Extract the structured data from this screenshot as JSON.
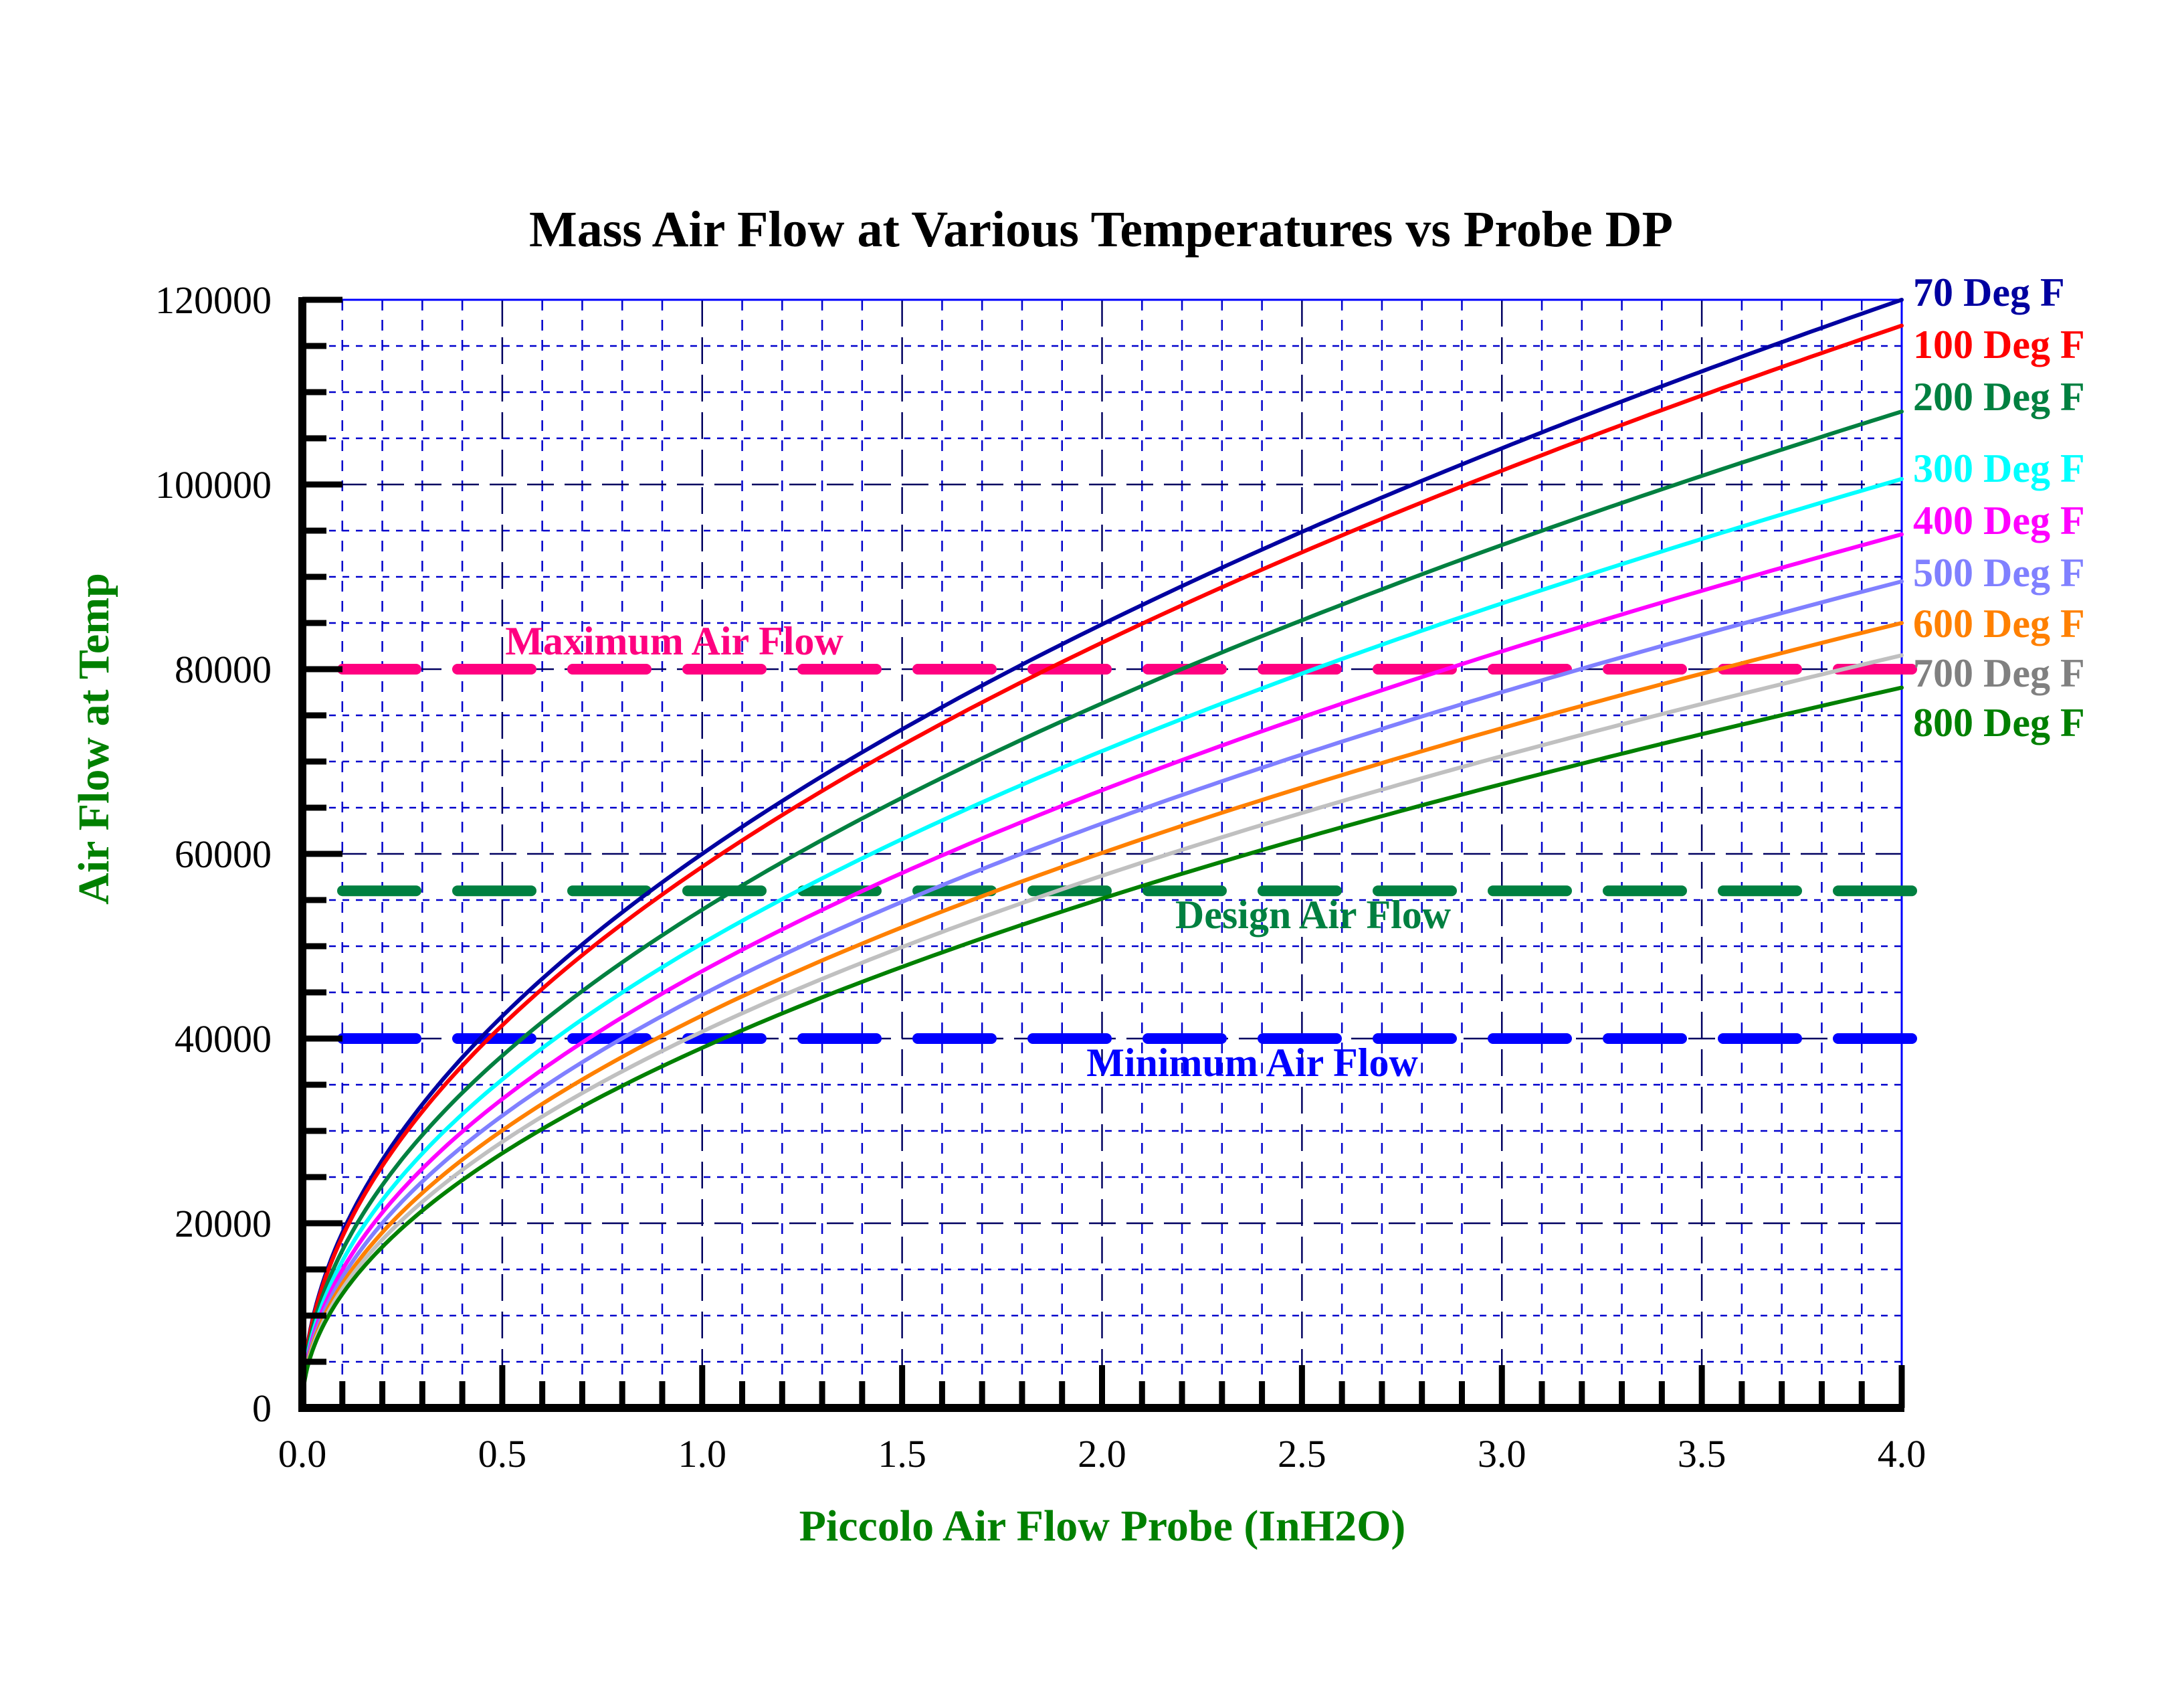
{
  "chart_data": {
    "type": "line",
    "title": "Mass Air Flow at Various Temperatures vs Probe DP",
    "xlabel": "Piccolo Air Flow Probe (InH2O)",
    "ylabel": "Air Flow at Temp",
    "xlim": [
      0,
      4.0
    ],
    "ylim": [
      0,
      120000
    ],
    "x_ticks": [
      "0.0",
      "0.5",
      "1.0",
      "1.5",
      "2.0",
      "2.5",
      "3.0",
      "3.5",
      "4.0"
    ],
    "y_ticks": [
      "0",
      "20000",
      "40000",
      "60000",
      "80000",
      "100000",
      "120000"
    ],
    "grid": true,
    "legend_placement": "right",
    "x": [
      0,
      0.1,
      0.25,
      0.5,
      1.0,
      1.5,
      2.0,
      2.5,
      3.0,
      3.5,
      4.0
    ],
    "series": [
      {
        "name": "70 Deg F",
        "color": "#0000a0",
        "values": [
          0,
          18974,
          30000,
          42426,
          60000,
          73485,
          84853,
          94868,
          103923,
          112250,
          120000
        ]
      },
      {
        "name": "100 Deg F",
        "color": "#ff0000",
        "values": [
          0,
          18531,
          29300,
          41437,
          58600,
          71770,
          82874,
          92654,
          101499,
          109631,
          117200
        ]
      },
      {
        "name": "200 Deg F",
        "color": "#008040",
        "values": [
          0,
          17059,
          26975,
          38148,
          53950,
          66074,
          76296,
          85300,
          93447,
          100930,
          107900
        ]
      },
      {
        "name": "300 Deg F",
        "color": "#00ffff",
        "values": [
          0,
          15905,
          25150,
          35567,
          50300,
          61604,
          71134,
          79529,
          87124,
          94101,
          100600
        ]
      },
      {
        "name": "400 Deg F",
        "color": "#ff00ff",
        "values": [
          0,
          14956,
          23650,
          33446,
          47300,
          57929,
          66892,
          74786,
          81928,
          88489,
          94600
        ]
      },
      {
        "name": "500 Deg F",
        "color": "#8080ff",
        "values": [
          0,
          14150,
          22375,
          31643,
          44750,
          54806,
          63285,
          70754,
          77511,
          83718,
          89500
        ]
      },
      {
        "name": "600 Deg F",
        "color": "#ff8000",
        "values": [
          0,
          13439,
          21250,
          30052,
          42500,
          52050,
          60104,
          67197,
          73614,
          79509,
          85000
        ]
      },
      {
        "name": "700 Deg F",
        "color": "#c0c0c0",
        "label_color": "#808080",
        "values": [
          0,
          12885,
          20375,
          28814,
          40750,
          49907,
          57629,
          64430,
          70583,
          76235,
          81500
        ]
      },
      {
        "name": "800 Deg F",
        "color": "#008000",
        "values": [
          0,
          12332,
          19500,
          27577,
          39000,
          47763,
          55154,
          61663,
          67552,
          72961,
          78000
        ]
      }
    ],
    "reference_lines": [
      {
        "label": "Maximum Air Flow",
        "value": 80000,
        "color": "#ff0080"
      },
      {
        "label": "Design Air Flow",
        "value": 56000,
        "color": "#008040"
      },
      {
        "label": "Minimum Air Flow",
        "value": 40000,
        "color": "#0000ff"
      }
    ],
    "axis_label_color": "#008000",
    "grid_color": "#0000cc"
  }
}
